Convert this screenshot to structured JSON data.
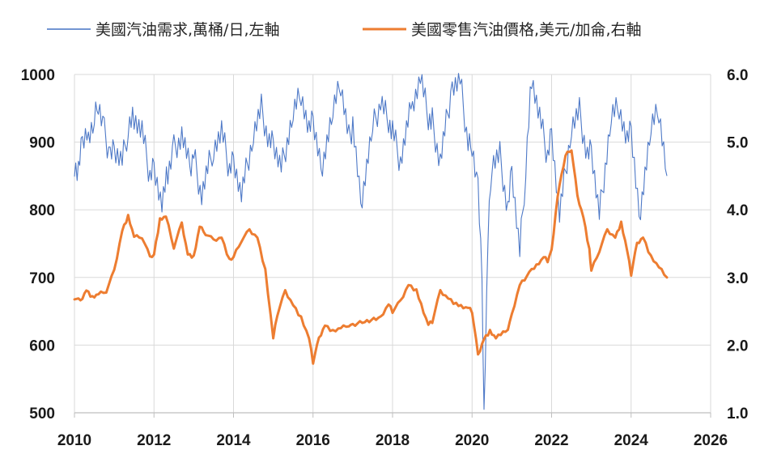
{
  "colors": {
    "demand": "#4472c4",
    "price": "#ed7d31",
    "grid": "#d9d9d9",
    "axis": "#bfbfbf"
  },
  "chart_data": {
    "type": "line",
    "title": "",
    "xlabel": "",
    "ylabel": "",
    "xlim": [
      2010,
      2026
    ],
    "ylim_left": [
      500,
      1000
    ],
    "ylim_right": [
      1.0,
      6.0
    ],
    "grid": true,
    "legend_position": "top",
    "x_ticks": [
      "2010",
      "2012",
      "2014",
      "2016",
      "2018",
      "2020",
      "2022",
      "2024",
      "2026"
    ],
    "y_left_ticks": [
      "500",
      "600",
      "700",
      "800",
      "900",
      "1000"
    ],
    "y_right_ticks": [
      "1.0",
      "2.0",
      "3.0",
      "4.0",
      "5.0",
      "6.0"
    ],
    "series": [
      {
        "name": "美國汽油需求,萬桶/日,左軸",
        "axis": "left",
        "color": "#4472c4",
        "x": [
          2010.0,
          2010.1,
          2010.2,
          2010.35,
          2010.5,
          2010.6,
          2010.75,
          2010.9,
          2011.0,
          2011.2,
          2011.35,
          2011.5,
          2011.7,
          2011.9,
          2012.0,
          2012.2,
          2012.35,
          2012.5,
          2012.7,
          2012.9,
          2013.0,
          2013.2,
          2013.5,
          2013.7,
          2013.9,
          2014.0,
          2014.2,
          2014.5,
          2014.7,
          2014.9,
          2015.0,
          2015.2,
          2015.5,
          2015.7,
          2015.9,
          2016.0,
          2016.2,
          2016.5,
          2016.7,
          2016.9,
          2017.0,
          2017.2,
          2017.5,
          2017.7,
          2017.9,
          2018.0,
          2018.2,
          2018.5,
          2018.7,
          2018.9,
          2019.0,
          2019.2,
          2019.5,
          2019.7,
          2019.9,
          2020.0,
          2020.15,
          2020.25,
          2020.3,
          2020.4,
          2020.5,
          2020.7,
          2020.9,
          2021.0,
          2021.2,
          2021.35,
          2021.5,
          2021.7,
          2021.9,
          2022.0,
          2022.2,
          2022.5,
          2022.7,
          2022.9,
          2023.0,
          2023.2,
          2023.5,
          2023.7,
          2023.9,
          2024.0,
          2024.2,
          2024.5,
          2024.7,
          2024.9
        ],
        "values": [
          870,
          855,
          900,
          915,
          935,
          958,
          915,
          880,
          890,
          870,
          920,
          940,
          915,
          850,
          870,
          805,
          855,
          890,
          910,
          860,
          880,
          820,
          895,
          915,
          860,
          880,
          820,
          915,
          950,
          900,
          900,
          860,
          945,
          975,
          915,
          930,
          860,
          945,
          985,
          905,
          925,
          805,
          920,
          960,
          935,
          915,
          870,
          960,
          995,
          935,
          930,
          870,
          985,
          990,
          900,
          900,
          830,
          690,
          505,
          760,
          870,
          880,
          800,
          860,
          735,
          860,
          1000,
          935,
          880,
          920,
          790,
          925,
          945,
          880,
          890,
          790,
          940,
          955,
          900,
          915,
          790,
          920,
          945,
          850
        ]
      },
      {
        "name": "美國零售汽油價格,美元/加侖,右軸",
        "axis": "right",
        "color": "#ed7d31",
        "x": [
          2010.0,
          2010.15,
          2010.3,
          2010.45,
          2010.6,
          2010.8,
          2011.0,
          2011.2,
          2011.35,
          2011.5,
          2011.7,
          2011.9,
          2012.0,
          2012.15,
          2012.3,
          2012.5,
          2012.7,
          2012.85,
          2013.0,
          2013.15,
          2013.3,
          2013.5,
          2013.7,
          2013.9,
          2014.0,
          2014.2,
          2014.4,
          2014.6,
          2014.8,
          2015.0,
          2015.1,
          2015.3,
          2015.5,
          2015.7,
          2015.9,
          2016.0,
          2016.15,
          2016.3,
          2016.5,
          2016.7,
          2016.9,
          2017.0,
          2017.3,
          2017.7,
          2017.9,
          2018.0,
          2018.2,
          2018.4,
          2018.6,
          2018.9,
          2019.0,
          2019.2,
          2019.4,
          2019.6,
          2019.9,
          2020.0,
          2020.15,
          2020.3,
          2020.45,
          2020.6,
          2020.9,
          2021.0,
          2021.2,
          2021.5,
          2021.8,
          2021.9,
          2022.0,
          2022.15,
          2022.25,
          2022.35,
          2022.5,
          2022.65,
          2022.8,
          2022.95,
          2023.0,
          2023.2,
          2023.4,
          2023.6,
          2023.75,
          2023.9,
          2024.0,
          2024.15,
          2024.3,
          2024.5,
          2024.7,
          2024.9
        ],
        "values": [
          2.7,
          2.65,
          2.82,
          2.7,
          2.75,
          2.8,
          3.1,
          3.7,
          3.9,
          3.6,
          3.6,
          3.3,
          3.35,
          3.85,
          3.9,
          3.45,
          3.8,
          3.35,
          3.3,
          3.75,
          3.65,
          3.55,
          3.6,
          3.25,
          3.3,
          3.55,
          3.7,
          3.6,
          3.1,
          2.1,
          2.45,
          2.8,
          2.6,
          2.4,
          2.1,
          1.75,
          2.1,
          2.3,
          2.2,
          2.25,
          2.3,
          2.3,
          2.35,
          2.4,
          2.6,
          2.5,
          2.65,
          2.9,
          2.8,
          2.3,
          2.35,
          2.8,
          2.7,
          2.6,
          2.55,
          2.5,
          1.85,
          2.1,
          2.2,
          2.1,
          2.25,
          2.45,
          2.9,
          3.1,
          3.3,
          3.25,
          3.4,
          4.2,
          4.5,
          4.8,
          4.9,
          4.2,
          3.9,
          3.4,
          3.1,
          3.4,
          3.7,
          3.6,
          3.8,
          3.4,
          3.05,
          3.5,
          3.6,
          3.3,
          3.15,
          3.0
        ]
      }
    ]
  }
}
